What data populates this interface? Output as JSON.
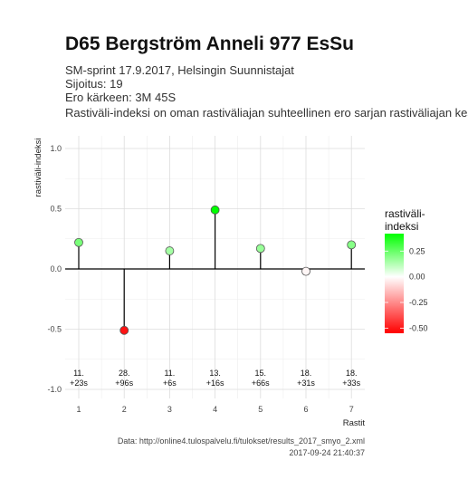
{
  "header": {
    "title": "D65 Bergström Anneli 977 EsSu",
    "subtitle_lines": [
      "SM-sprint 17.9.2017, Helsingin Suunnistajat",
      "Sijoitus: 19",
      "Ero kärkeen: 3M 45S",
      "Rastiväli-indeksi on oman rastiväliajan suhteellinen ero sarjan rastiväliajan kes"
    ]
  },
  "chart_data": {
    "type": "scatter",
    "xlabel": "Rastit",
    "ylabel": "rastiväli-indeksi",
    "ylim": [
      -1.0,
      1.0
    ],
    "yticks": [
      -1.0,
      -0.5,
      0.0,
      0.5,
      1.0
    ],
    "ytick_labels": [
      "-1.0",
      "-0.5",
      "0.0",
      "0.5",
      "1.0"
    ],
    "xticks": [
      1,
      2,
      3,
      4,
      5,
      6,
      7
    ],
    "grid": true,
    "points": [
      {
        "x": 1,
        "y": 0.22,
        "rank": "11.",
        "diff": "+23s"
      },
      {
        "x": 2,
        "y": -0.51,
        "rank": "28.",
        "diff": "+96s"
      },
      {
        "x": 3,
        "y": 0.15,
        "rank": "11.",
        "diff": "+6s"
      },
      {
        "x": 4,
        "y": 0.49,
        "rank": "13.",
        "diff": "+16s"
      },
      {
        "x": 5,
        "y": 0.17,
        "rank": "15.",
        "diff": "+66s"
      },
      {
        "x": 6,
        "y": -0.02,
        "rank": "18.",
        "diff": "+31s"
      },
      {
        "x": 7,
        "y": 0.2,
        "rank": "18.",
        "diff": "+33s"
      }
    ],
    "legend": {
      "title_lines": [
        "rastiväli-",
        "indeksi"
      ],
      "range": [
        -0.55,
        0.42
      ],
      "ticks": [
        0.25,
        0.0,
        -0.25,
        -0.5
      ],
      "tick_labels": [
        "0.25",
        "0.00",
        "-0.25",
        "-0.50"
      ],
      "placement": "right",
      "colors": {
        "low": "#ff0000",
        "mid": "#ffffff",
        "high": "#00ff00"
      }
    }
  },
  "caption_lines": [
    "Data: http://online4.tulospalvelu.fi/tulokset/results_2017_smyo_2.xml",
    "2017-09-24 21:40:37"
  ]
}
